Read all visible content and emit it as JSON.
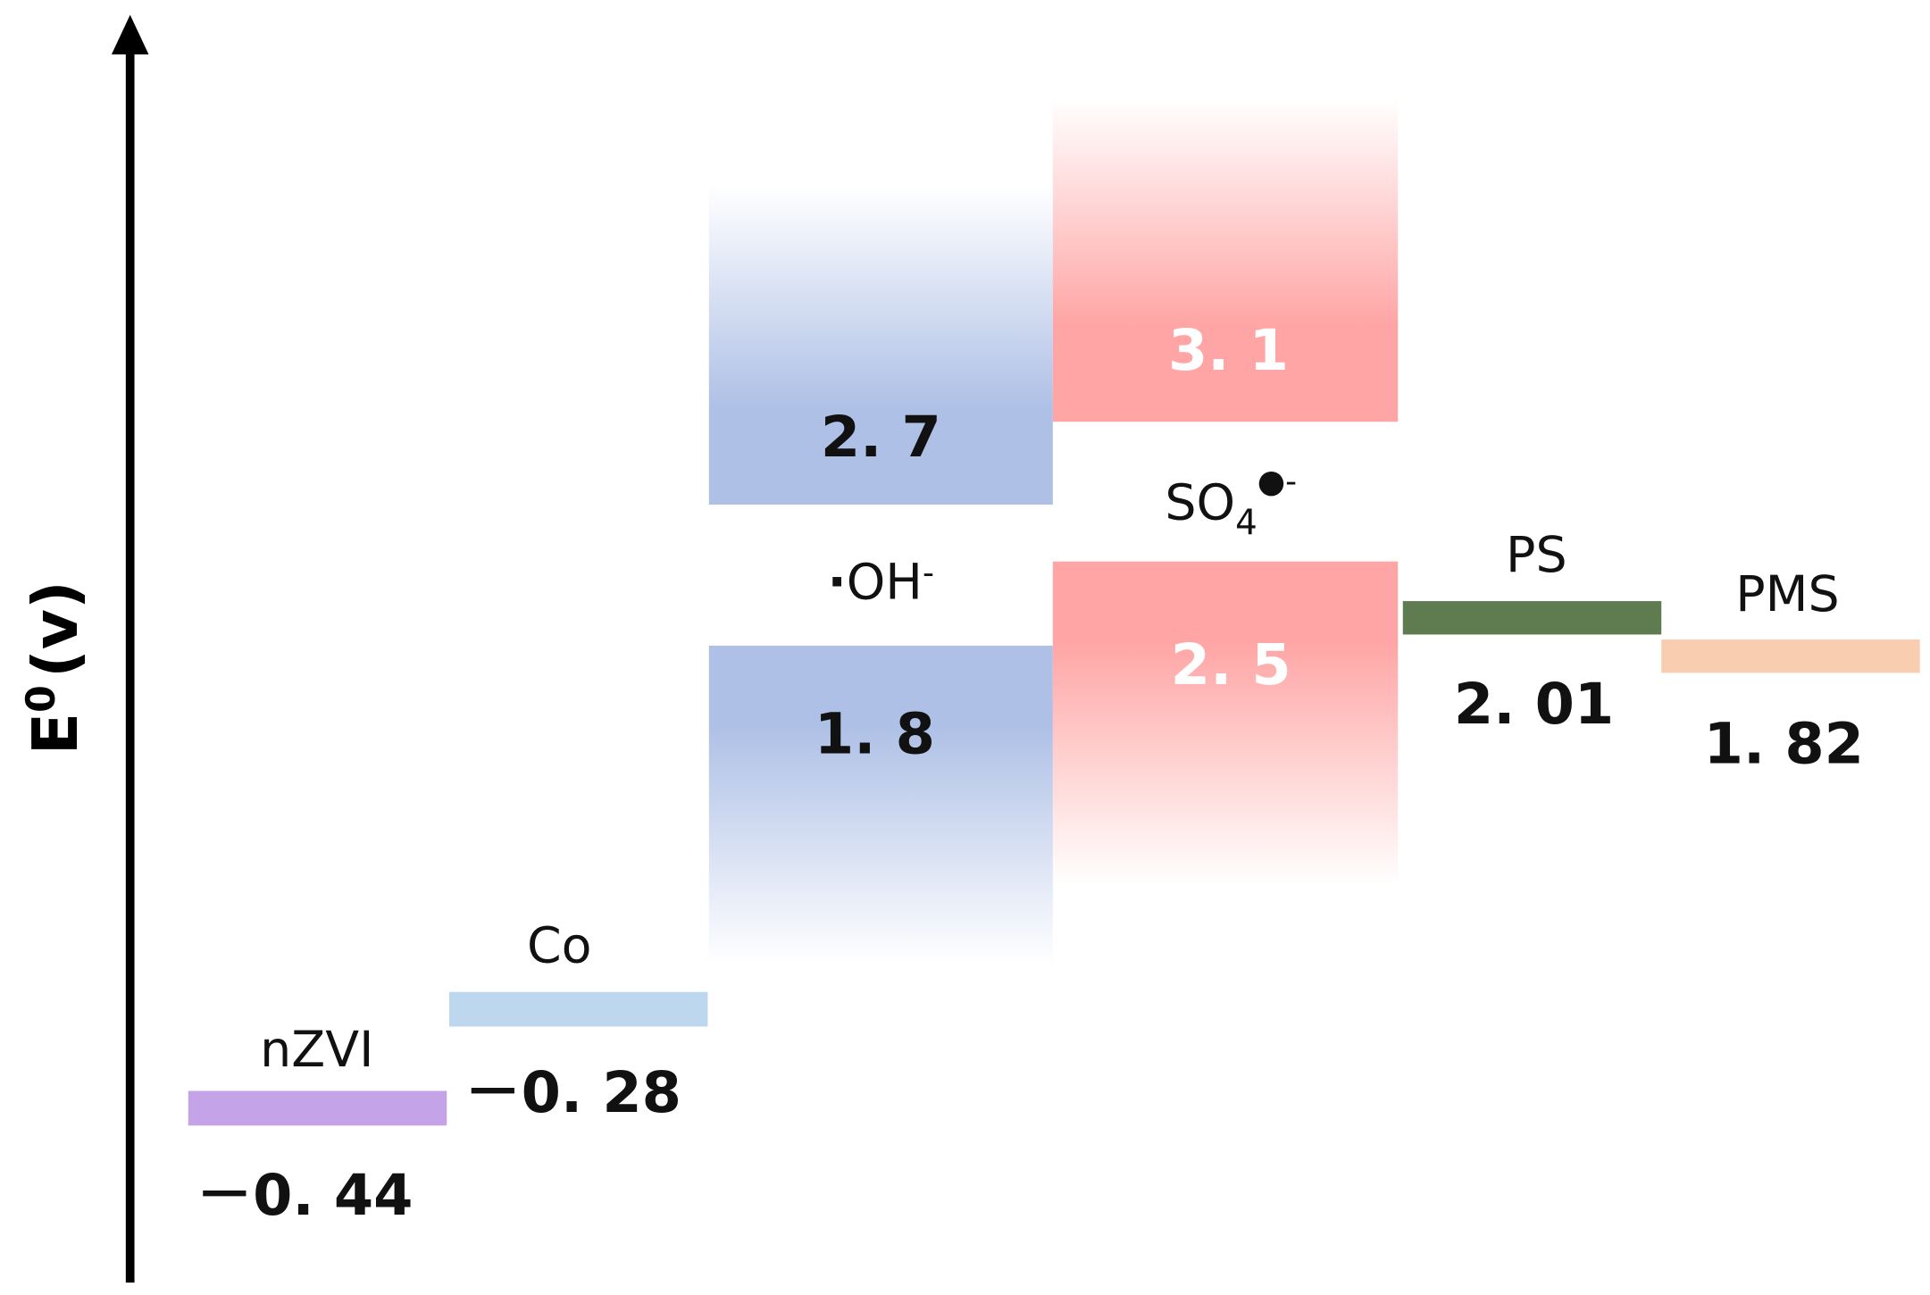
{
  "axis_label": {
    "base": "E",
    "sup": "0",
    "unit": "(v)"
  },
  "species": [
    {
      "name": "nZVI",
      "value": "－0. 44"
    },
    {
      "name": "Co",
      "value": "－0. 28"
    },
    {
      "radical": "·",
      "name": "OH",
      "charge": "-",
      "upper": "2. 7",
      "lower": "1. 8"
    },
    {
      "name": "SO",
      "subscript": "4",
      "radical": "●",
      "charge": "-",
      "upper": "3. 1",
      "lower": "2. 5"
    },
    {
      "name": "PS",
      "value": "2. 01"
    },
    {
      "name": "PMS",
      "value": "1. 82"
    }
  ]
}
